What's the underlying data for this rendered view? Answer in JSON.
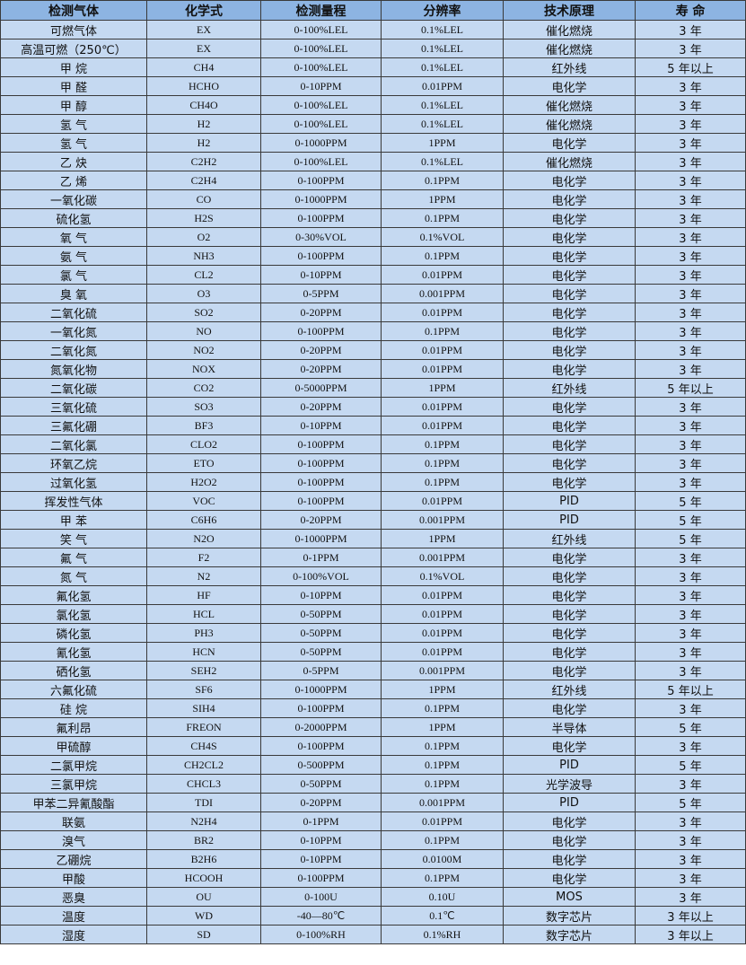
{
  "headers": [
    "检测气体",
    "化学式",
    "检测量程",
    "分辨率",
    "技术原理",
    "寿 命"
  ],
  "rows": [
    [
      "可燃气体",
      "EX",
      "0-100%LEL",
      "0.1%LEL",
      "催化燃烧",
      "3 年"
    ],
    [
      "高温可燃（250℃）",
      "EX",
      "0-100%LEL",
      "0.1%LEL",
      "催化燃烧",
      "3 年"
    ],
    [
      "甲 烷",
      "CH4",
      "0-100%LEL",
      "0.1%LEL",
      "红外线",
      "5 年以上"
    ],
    [
      "甲 醛",
      "HCHO",
      "0-10PPM",
      "0.01PPM",
      "电化学",
      "3 年"
    ],
    [
      "甲 醇",
      "CH4O",
      "0-100%LEL",
      "0.1%LEL",
      "催化燃烧",
      "3 年"
    ],
    [
      "氢 气",
      "H2",
      "0-100%LEL",
      "0.1%LEL",
      "催化燃烧",
      "3 年"
    ],
    [
      "氢 气",
      "H2",
      "0-1000PPM",
      "1PPM",
      "电化学",
      "3 年"
    ],
    [
      "乙 炔",
      "C2H2",
      "0-100%LEL",
      "0.1%LEL",
      "催化燃烧",
      "3 年"
    ],
    [
      "乙 烯",
      "C2H4",
      "0-100PPM",
      "0.1PPM",
      "电化学",
      "3 年"
    ],
    [
      "一氧化碳",
      "CO",
      "0-1000PPM",
      "1PPM",
      "电化学",
      "3 年"
    ],
    [
      "硫化氢",
      "H2S",
      "0-100PPM",
      "0.1PPM",
      "电化学",
      "3 年"
    ],
    [
      "氧 气",
      "O2",
      "0-30%VOL",
      "0.1%VOL",
      "电化学",
      "3 年"
    ],
    [
      "氨 气",
      "NH3",
      "0-100PPM",
      "0.1PPM",
      "电化学",
      "3 年"
    ],
    [
      "氯 气",
      "CL2",
      "0-10PPM",
      "0.01PPM",
      "电化学",
      "3 年"
    ],
    [
      "臭 氧",
      "O3",
      "0-5PPM",
      "0.001PPM",
      "电化学",
      "3 年"
    ],
    [
      "二氧化硫",
      "SO2",
      "0-20PPM",
      "0.01PPM",
      "电化学",
      "3 年"
    ],
    [
      "一氧化氮",
      "NO",
      "0-100PPM",
      "0.1PPM",
      "电化学",
      "3 年"
    ],
    [
      "二氧化氮",
      "NO2",
      "0-20PPM",
      "0.01PPM",
      "电化学",
      "3 年"
    ],
    [
      "氮氧化物",
      "NOX",
      "0-20PPM",
      "0.01PPM",
      "电化学",
      "3 年"
    ],
    [
      "二氧化碳",
      "CO2",
      "0-5000PPM",
      "1PPM",
      "红外线",
      "5 年以上"
    ],
    [
      "三氧化硫",
      "SO3",
      "0-20PPM",
      "0.01PPM",
      "电化学",
      "3 年"
    ],
    [
      "三氟化硼",
      "BF3",
      "0-10PPM",
      "0.01PPM",
      "电化学",
      "3 年"
    ],
    [
      "二氧化氯",
      "CLO2",
      "0-100PPM",
      "0.1PPM",
      "电化学",
      "3 年"
    ],
    [
      "环氧乙烷",
      "ETO",
      "0-100PPM",
      "0.1PPM",
      "电化学",
      "3 年"
    ],
    [
      "过氧化氢",
      "H2O2",
      "0-100PPM",
      "0.1PPM",
      "电化学",
      "3 年"
    ],
    [
      "挥发性气体",
      "VOC",
      "0-100PPM",
      "0.01PPM",
      "PID",
      "5 年"
    ],
    [
      "甲 苯",
      "C6H6",
      "0-20PPM",
      "0.001PPM",
      "PID",
      "5 年"
    ],
    [
      "笑 气",
      "N2O",
      "0-1000PPM",
      "1PPM",
      "红外线",
      "5 年"
    ],
    [
      "氟 气",
      "F2",
      "0-1PPM",
      "0.001PPM",
      "电化学",
      "3 年"
    ],
    [
      "氮 气",
      "N2",
      "0-100%VOL",
      "0.1%VOL",
      "电化学",
      "3 年"
    ],
    [
      "氟化氢",
      "HF",
      "0-10PPM",
      "0.01PPM",
      "电化学",
      "3 年"
    ],
    [
      "氯化氢",
      "HCL",
      "0-50PPM",
      "0.01PPM",
      "电化学",
      "3 年"
    ],
    [
      "磷化氢",
      "PH3",
      "0-50PPM",
      "0.01PPM",
      "电化学",
      "3 年"
    ],
    [
      "氰化氢",
      "HCN",
      "0-50PPM",
      "0.01PPM",
      "电化学",
      "3 年"
    ],
    [
      "硒化氢",
      "SEH2",
      "0-5PPM",
      "0.001PPM",
      "电化学",
      "3 年"
    ],
    [
      "六氟化硫",
      "SF6",
      "0-1000PPM",
      "1PPM",
      "红外线",
      "5 年以上"
    ],
    [
      "硅 烷",
      "SIH4",
      "0-100PPM",
      "0.1PPM",
      "电化学",
      "3 年"
    ],
    [
      "氟利昂",
      "FREON",
      "0-2000PPM",
      "1PPM",
      "半导体",
      "5 年"
    ],
    [
      "甲硫醇",
      "CH4S",
      "0-100PPM",
      "0.1PPM",
      "电化学",
      "3 年"
    ],
    [
      "二氯甲烷",
      "CH2CL2",
      "0-500PPM",
      "0.1PPM",
      "PID",
      "5 年"
    ],
    [
      "三氯甲烷",
      "CHCL3",
      "0-50PPM",
      "0.1PPM",
      "光学波导",
      "3 年"
    ],
    [
      "甲苯二异氰酸酯",
      "TDI",
      "0-20PPM",
      "0.001PPM",
      "PID",
      "5 年"
    ],
    [
      "联氨",
      "N2H4",
      "0-1PPM",
      "0.01PPM",
      "电化学",
      "3 年"
    ],
    [
      "溴气",
      "BR2",
      "0-10PPM",
      "0.1PPM",
      "电化学",
      "3 年"
    ],
    [
      "乙硼烷",
      "B2H6",
      "0-10PPM",
      "0.0100M",
      "电化学",
      "3 年"
    ],
    [
      "甲酸",
      "HCOOH",
      "0-100PPM",
      "0.1PPM",
      "电化学",
      "3 年"
    ],
    [
      "恶臭",
      "OU",
      "0-100U",
      "0.10U",
      "MOS",
      "3 年"
    ],
    [
      "温度",
      "WD",
      "-40—80℃",
      "0.1℃",
      "数字芯片",
      "3 年以上"
    ],
    [
      "湿度",
      "SD",
      "0-100%RH",
      "0.1%RH",
      "数字芯片",
      "3 年以上"
    ]
  ],
  "colors": {
    "header_bg": "#8db4e2",
    "row_bg": "#c5d9f1",
    "border": "#3a3a3a"
  }
}
